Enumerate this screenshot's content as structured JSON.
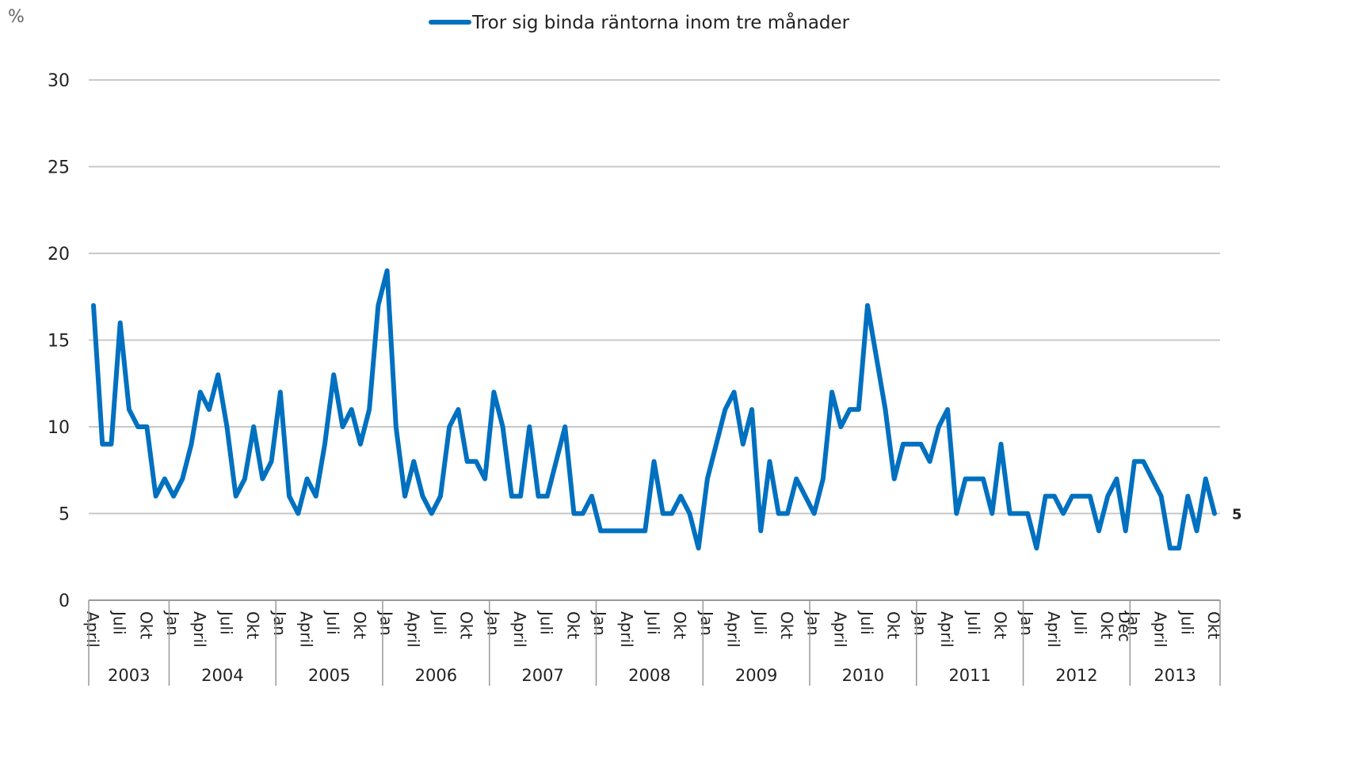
{
  "chart_data": {
    "type": "line",
    "y_unit": "%",
    "categories": [
      "April",
      null,
      null,
      "Juli",
      null,
      null,
      "Okt",
      null,
      null,
      "Jan",
      null,
      null,
      "April",
      null,
      null,
      "Juli",
      null,
      null,
      "Okt",
      null,
      null,
      "Jan",
      null,
      null,
      "April",
      null,
      null,
      "Juli",
      null,
      null,
      "Okt",
      null,
      null,
      "Jan",
      null,
      null,
      "April",
      null,
      null,
      "Juli",
      null,
      null,
      "Okt",
      null,
      null,
      "Jan",
      null,
      null,
      "April",
      null,
      null,
      "Juli",
      null,
      null,
      "Okt",
      null,
      null,
      "Jan",
      null,
      null,
      "April",
      null,
      null,
      "Juli",
      null,
      null,
      "Okt",
      null,
      null,
      "Jan",
      null,
      null,
      "April",
      null,
      null,
      "Juli",
      null,
      null,
      "Okt",
      null,
      null,
      "Jan",
      null,
      null,
      "April",
      null,
      null,
      "Juli",
      null,
      null,
      "Okt",
      null,
      null,
      "Jan",
      null,
      null,
      "April",
      null,
      null,
      "Juli",
      null,
      null,
      "Okt",
      null,
      null,
      "Jan",
      null,
      null,
      "April",
      null,
      null,
      "Juli",
      null,
      null,
      "Okt",
      null,
      "Dec",
      "Jan",
      null,
      null,
      "April",
      null,
      null,
      "Juli",
      null,
      null,
      "Okt"
    ],
    "years": [
      "2003",
      "2004",
      "2005",
      "2006",
      "2007",
      "2008",
      "2009",
      "2010",
      "2011",
      "2012",
      "2013"
    ],
    "series": [
      {
        "name": "Tror sig binda räntorna inom tre månader",
        "color": "#0070c0",
        "values": [
          17,
          9,
          9,
          16,
          11,
          10,
          10,
          6,
          7,
          6,
          7,
          9,
          12,
          11,
          13,
          10,
          6,
          7,
          10,
          7,
          8,
          12,
          6,
          5,
          7,
          6,
          9,
          13,
          10,
          11,
          9,
          11,
          17,
          19,
          10,
          6,
          8,
          6,
          5,
          6,
          10,
          11,
          8,
          8,
          7,
          12,
          10,
          6,
          6,
          10,
          6,
          6,
          8,
          10,
          5,
          5,
          6,
          4,
          4,
          4,
          4,
          4,
          4,
          8,
          5,
          5,
          6,
          5,
          3,
          7,
          9,
          11,
          12,
          9,
          11,
          4,
          8,
          5,
          5,
          7,
          6,
          5,
          7,
          12,
          10,
          11,
          11,
          17,
          14,
          11,
          7,
          9,
          9,
          9,
          8,
          10,
          11,
          5,
          7,
          7,
          7,
          5,
          9,
          5,
          5,
          5,
          3,
          6,
          6,
          5,
          6,
          6,
          6,
          4,
          6,
          7,
          4,
          8,
          8,
          7,
          6,
          3,
          3,
          6,
          4,
          7,
          5
        ]
      }
    ],
    "last_value_label": true,
    "ylim": [
      0,
      30
    ],
    "yticks": [
      0,
      5,
      10,
      15,
      20,
      25,
      30
    ],
    "grid": true,
    "legend": "top"
  }
}
